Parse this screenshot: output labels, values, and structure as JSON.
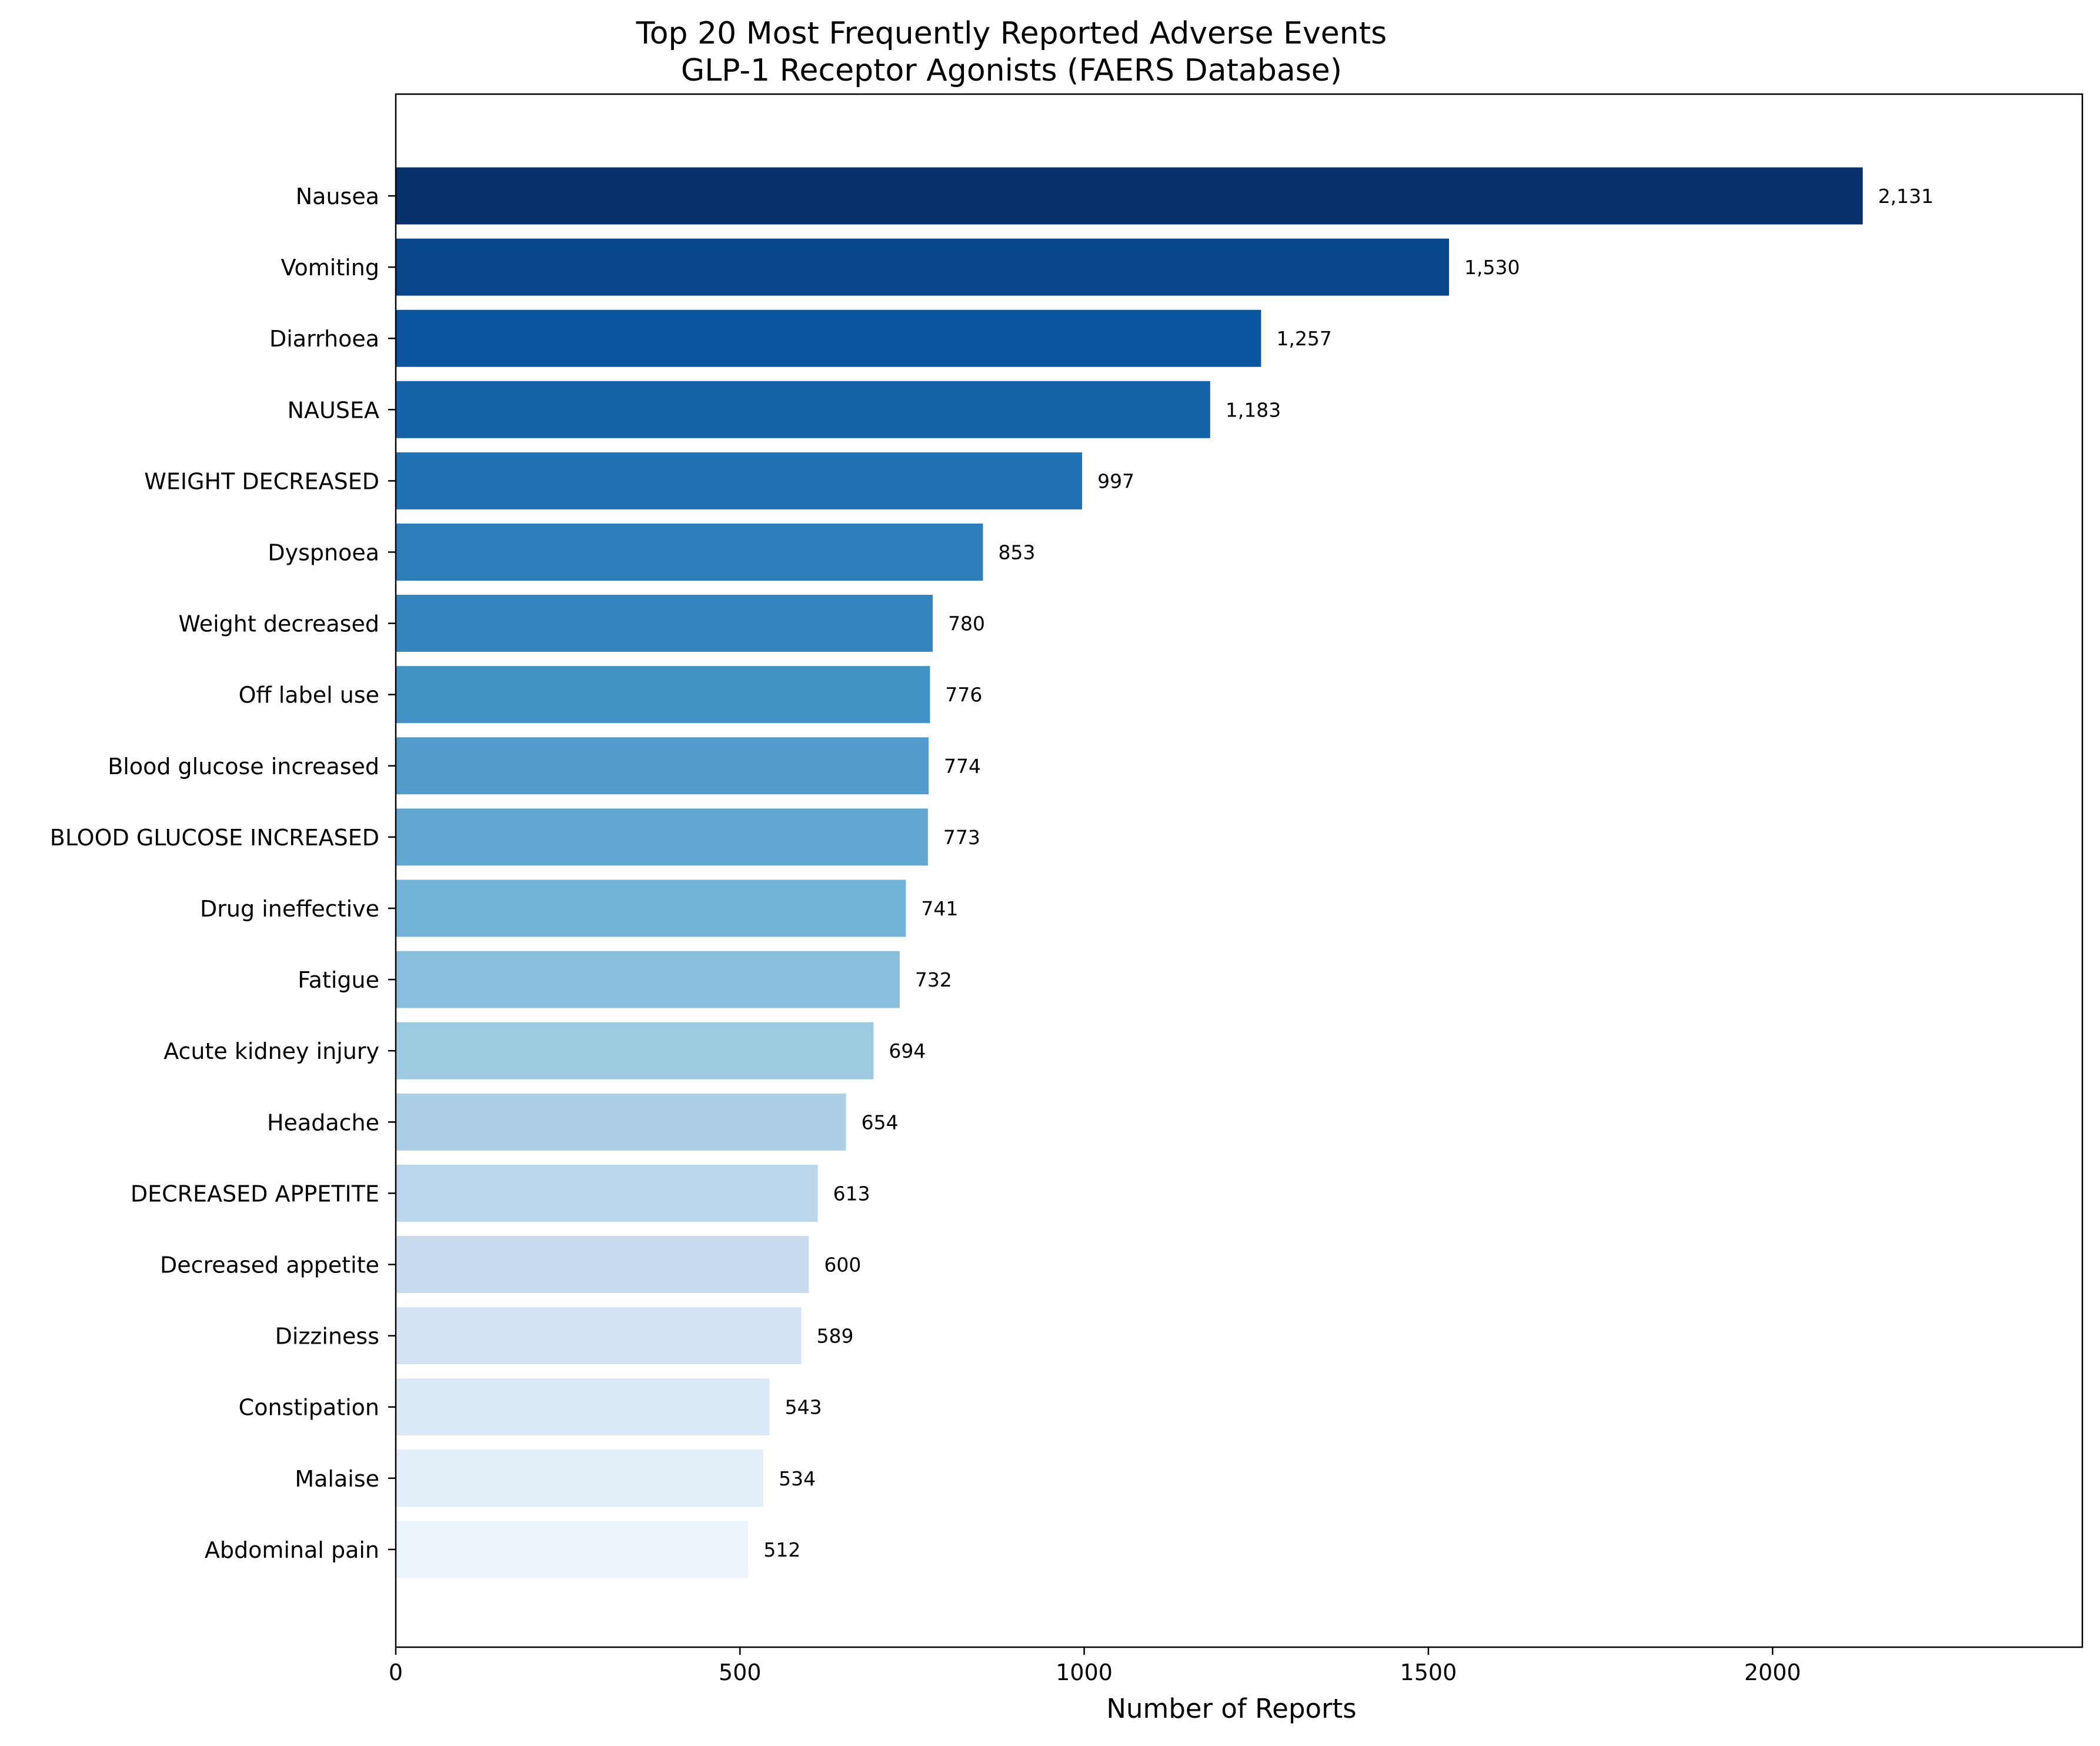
{
  "chart_data": {
    "type": "bar",
    "orientation": "horizontal",
    "title_line1": "Top 20 Most Frequently Reported Adverse Events",
    "title_line2": "GLP-1 Receptor Agonists (FAERS Database)",
    "xlabel": "Number of Reports",
    "ylabel": "",
    "xlim": [
      0,
      2450
    ],
    "xticks": [
      0,
      500,
      1000,
      1500,
      2000
    ],
    "grid": false,
    "categories": [
      "Nausea",
      "Vomiting",
      "Diarrhoea",
      "NAUSEA",
      "WEIGHT DECREASED",
      "Dyspnoea",
      "Weight decreased",
      "Off label use",
      "Blood glucose increased",
      "BLOOD GLUCOSE INCREASED",
      "Drug ineffective",
      "Fatigue",
      "Acute kidney injury",
      "Headache",
      "DECREASED APPETITE",
      "Decreased appetite",
      "Dizziness",
      "Constipation",
      "Malaise",
      "Abdominal pain"
    ],
    "values": [
      2131,
      1530,
      1257,
      1183,
      997,
      853,
      780,
      776,
      774,
      773,
      741,
      732,
      694,
      654,
      613,
      600,
      589,
      543,
      534,
      512
    ],
    "value_labels": [
      "2,131",
      "1,530",
      "1,257",
      "1,183",
      "997",
      "853",
      "780",
      "776",
      "774",
      "773",
      "741",
      "732",
      "694",
      "654",
      "613",
      "600",
      "589",
      "543",
      "534",
      "512"
    ],
    "colors": [
      "#08306b",
      "#08468c",
      "#0b559f",
      "#1763aa",
      "#2171b5",
      "#2c7dba",
      "#3585c0",
      "#4292c6",
      "#519ccc",
      "#60a7d2",
      "#74b3d8",
      "#89bedc",
      "#9dcae1",
      "#adcfe6",
      "#bcd7eb",
      "#c8dcf0",
      "#d3e3f3",
      "#dce9f6",
      "#e3eef8",
      "#ebf3fb"
    ]
  }
}
